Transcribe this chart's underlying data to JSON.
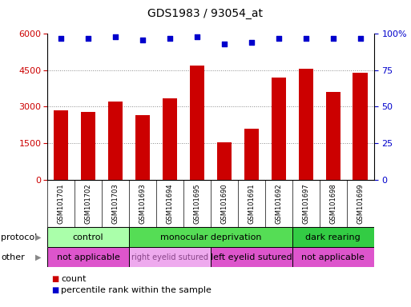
{
  "title": "GDS1983 / 93054_at",
  "samples": [
    "GSM101701",
    "GSM101702",
    "GSM101703",
    "GSM101693",
    "GSM101694",
    "GSM101695",
    "GSM101690",
    "GSM101691",
    "GSM101692",
    "GSM101697",
    "GSM101698",
    "GSM101699"
  ],
  "bar_values": [
    2850,
    2780,
    3200,
    2650,
    3350,
    4700,
    1550,
    2100,
    4200,
    4550,
    3600,
    4400
  ],
  "percentile_values": [
    97,
    97,
    98,
    96,
    97,
    98,
    93,
    94,
    97,
    97,
    97,
    97
  ],
  "bar_color": "#cc0000",
  "dot_color": "#0000cc",
  "ylim_left": [
    0,
    6000
  ],
  "ylim_right": [
    0,
    100
  ],
  "yticks_left": [
    0,
    1500,
    3000,
    4500,
    6000
  ],
  "yticks_right": [
    0,
    25,
    50,
    75,
    100
  ],
  "protocol_groups": [
    {
      "label": "control",
      "start": 0,
      "end": 3,
      "color": "#aaffaa"
    },
    {
      "label": "monocular deprivation",
      "start": 3,
      "end": 9,
      "color": "#55dd55"
    },
    {
      "label": "dark rearing",
      "start": 9,
      "end": 12,
      "color": "#33cc44"
    }
  ],
  "other_groups": [
    {
      "label": "not applicable",
      "start": 0,
      "end": 3,
      "color": "#dd55cc"
    },
    {
      "label": "right eyelid sutured",
      "start": 3,
      "end": 6,
      "color": "#eeaaee"
    },
    {
      "label": "left eyelid sutured",
      "start": 6,
      "end": 9,
      "color": "#dd55cc"
    },
    {
      "label": "not applicable",
      "start": 9,
      "end": 12,
      "color": "#dd55cc"
    }
  ],
  "legend_count_color": "#cc0000",
  "legend_dot_color": "#0000cc",
  "protocol_label": "protocol",
  "other_label": "other",
  "background_color": "#ffffff",
  "grid_color": "#888888",
  "sample_bg_color": "#d8d8d8",
  "right_ytick_label": "100%"
}
